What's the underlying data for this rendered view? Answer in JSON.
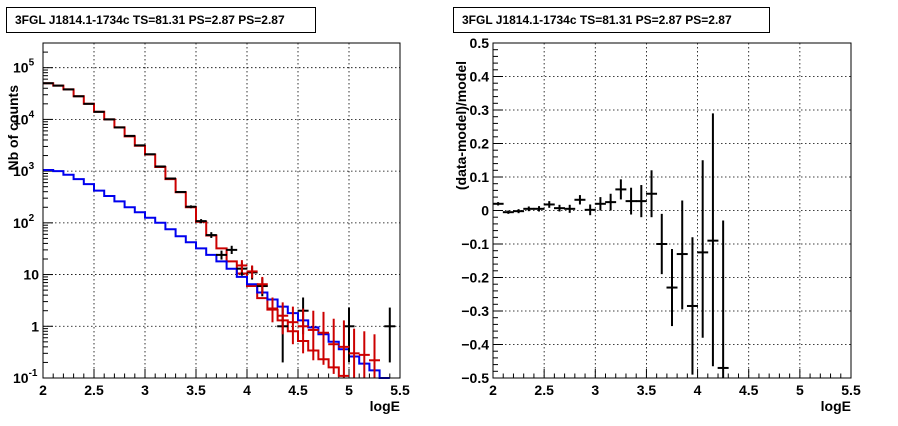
{
  "chart_data": [
    {
      "type": "histogram-log",
      "title": "3FGL J1814.1-1734c TS=81.31 PS=2.87 PS=2.87",
      "xlabel": "logE",
      "ylabel": "Nb of counts",
      "xlim": [
        2,
        5.5
      ],
      "ylim": [
        0.1,
        300000
      ],
      "log_y": true,
      "grid": true,
      "x_ticks": [
        "2",
        "2.5",
        "3",
        "3.5",
        "4",
        "4.5",
        "5",
        "5.5"
      ],
      "y_ticks": [
        {
          "value": 0.1,
          "label": "10",
          "exp": "-1"
        },
        {
          "value": 1,
          "label": "1",
          "exp": ""
        },
        {
          "value": 10,
          "label": "10",
          "exp": ""
        },
        {
          "value": 100,
          "label": "10",
          "exp": "2"
        },
        {
          "value": 1000,
          "label": "10",
          "exp": "3"
        },
        {
          "value": 10000,
          "label": "10",
          "exp": "4"
        },
        {
          "value": 100000,
          "label": "10",
          "exp": "5"
        }
      ],
      "bin_edges": [
        2.0,
        2.1,
        2.2,
        2.3,
        2.4,
        2.5,
        2.6,
        2.7,
        2.8,
        2.9,
        3.0,
        3.1,
        3.2,
        3.3,
        3.4,
        3.5,
        3.6,
        3.7,
        3.8,
        3.9,
        4.0,
        4.1,
        4.2,
        4.3,
        4.4,
        4.5,
        4.6,
        4.7,
        4.8,
        4.9,
        5.0,
        5.1,
        5.2,
        5.3,
        5.4
      ],
      "series": [
        {
          "kind": "step",
          "color": "#cc0000",
          "values": [
            50000,
            45000,
            38000,
            28000,
            20000,
            14000,
            10000,
            7000,
            4700,
            3100,
            2100,
            1200,
            700,
            390,
            200,
            105,
            57,
            32,
            18,
            10.5,
            6,
            3.5,
            2.1,
            1.3,
            0.8,
            0.52,
            0.34,
            0.23,
            0.16,
            0.11
          ]
        },
        {
          "kind": "step",
          "color": "#0000ee",
          "values": [
            1050,
            1000,
            850,
            700,
            560,
            420,
            330,
            260,
            200,
            160,
            125,
            100,
            75,
            55,
            42,
            32,
            24,
            18,
            13,
            9,
            6.5,
            4.5,
            3.3,
            2.4,
            1.8,
            1.3,
            0.95,
            0.7,
            0.5,
            0.36,
            0.26,
            0.19,
            0.14,
            0.1
          ]
        },
        {
          "kind": "errorbar",
          "color": "#000000",
          "points": [
            {
              "x": 2.05,
              "y": 50000,
              "lo": 49500,
              "hi": 50500
            },
            {
              "x": 2.15,
              "y": 45000,
              "lo": 44500,
              "hi": 45500
            },
            {
              "x": 2.25,
              "y": 38000,
              "lo": 37500,
              "hi": 38500
            },
            {
              "x": 2.35,
              "y": 28000,
              "lo": 27600,
              "hi": 28400
            },
            {
              "x": 2.45,
              "y": 20000,
              "lo": 19700,
              "hi": 20300
            },
            {
              "x": 2.55,
              "y": 14000,
              "lo": 13750,
              "hi": 14250
            },
            {
              "x": 2.65,
              "y": 10000,
              "lo": 9800,
              "hi": 10200
            },
            {
              "x": 2.75,
              "y": 7000,
              "lo": 6850,
              "hi": 7150
            },
            {
              "x": 2.85,
              "y": 4800,
              "lo": 4700,
              "hi": 4900
            },
            {
              "x": 2.95,
              "y": 3150,
              "lo": 3080,
              "hi": 3220
            },
            {
              "x": 3.05,
              "y": 2120,
              "lo": 2070,
              "hi": 2170
            },
            {
              "x": 3.15,
              "y": 1230,
              "lo": 1200,
              "hi": 1260
            },
            {
              "x": 3.25,
              "y": 720,
              "lo": 695,
              "hi": 745
            },
            {
              "x": 3.35,
              "y": 395,
              "lo": 378,
              "hi": 412
            },
            {
              "x": 3.45,
              "y": 205,
              "lo": 192,
              "hi": 218
            },
            {
              "x": 3.55,
              "y": 108,
              "lo": 98,
              "hi": 118
            },
            {
              "x": 3.65,
              "y": 58,
              "lo": 51,
              "hi": 66
            },
            {
              "x": 3.75,
              "y": 24,
              "lo": 19.5,
              "hi": 29
            },
            {
              "x": 3.85,
              "y": 30,
              "lo": 25,
              "hi": 36
            },
            {
              "x": 3.95,
              "y": 13,
              "lo": 9.5,
              "hi": 17
            },
            {
              "x": 4.05,
              "y": 11,
              "lo": 8,
              "hi": 14.5
            },
            {
              "x": 4.15,
              "y": 6,
              "lo": 3.8,
              "hi": 8.5
            },
            {
              "x": 4.25,
              "y": 2.2,
              "lo": 1.2,
              "hi": 3.5
            },
            {
              "x": 4.35,
              "y": 1.0,
              "lo": 0.2,
              "hi": 2.3
            },
            {
              "x": 4.55,
              "y": 2.0,
              "lo": 0.7,
              "hi": 3.6
            },
            {
              "x": 5.0,
              "y": 1.0,
              "lo": 0.2,
              "hi": 2.3
            },
            {
              "x": 5.4,
              "y": 1.0,
              "lo": 0.2,
              "hi": 2.3
            }
          ]
        },
        {
          "kind": "errorbar",
          "color": "#cc0000",
          "points": [
            {
              "x": 3.95,
              "y": 15,
              "lo": 11,
              "hi": 19
            },
            {
              "x": 4.05,
              "y": 11.5,
              "lo": 8.5,
              "hi": 15
            },
            {
              "x": 4.15,
              "y": 6.5,
              "lo": 4.2,
              "hi": 9
            },
            {
              "x": 4.25,
              "y": 2.2,
              "lo": 1.2,
              "hi": 3.6
            },
            {
              "x": 4.35,
              "y": 1.6,
              "lo": 0.7,
              "hi": 2.9
            },
            {
              "x": 4.45,
              "y": 1.2,
              "lo": 0.45,
              "hi": 2.4
            },
            {
              "x": 4.55,
              "y": 1.0,
              "lo": 0.3,
              "hi": 2.2
            },
            {
              "x": 4.65,
              "y": 0.85,
              "lo": 0.22,
              "hi": 2.0
            },
            {
              "x": 4.75,
              "y": 0.75,
              "lo": 0.18,
              "hi": 1.9
            },
            {
              "x": 4.85,
              "y": 0.45,
              "lo": 0.12,
              "hi": 1.4
            },
            {
              "x": 4.95,
              "y": 0.4,
              "lo": 0.1,
              "hi": 1.3
            },
            {
              "x": 5.05,
              "y": 0.3,
              "lo": 0.1,
              "hi": 0.9
            },
            {
              "x": 5.15,
              "y": 0.28,
              "lo": 0.1,
              "hi": 0.8
            },
            {
              "x": 5.25,
              "y": 0.22,
              "lo": 0.1,
              "hi": 0.7
            }
          ]
        }
      ]
    },
    {
      "type": "errorbar",
      "title": "3FGL J1814.1-1734c TS=81.31 PS=2.87 PS=2.87",
      "xlabel": "logE",
      "ylabel": "(data-model)/model",
      "xlim": [
        2,
        5.5
      ],
      "ylim": [
        -0.5,
        0.5
      ],
      "grid": true,
      "x_ticks": [
        "2",
        "2.5",
        "3",
        "3.5",
        "4",
        "4.5",
        "5",
        "5.5"
      ],
      "y_ticks": [
        "−0.5",
        "−0.4",
        "−0.3",
        "−0.2",
        "−0.1",
        "0",
        "0.1",
        "0.2",
        "0.3",
        "0.4",
        "0.5"
      ],
      "series": [
        {
          "kind": "errorbar",
          "color": "#000000",
          "points": [
            {
              "x": 2.05,
              "y": 0.02,
              "lo": 0.015,
              "hi": 0.025
            },
            {
              "x": 2.15,
              "y": -0.005,
              "lo": -0.01,
              "hi": 0.0
            },
            {
              "x": 2.25,
              "y": -0.002,
              "lo": -0.008,
              "hi": 0.004
            },
            {
              "x": 2.35,
              "y": 0.005,
              "lo": -0.002,
              "hi": 0.012
            },
            {
              "x": 2.45,
              "y": 0.005,
              "lo": -0.003,
              "hi": 0.013
            },
            {
              "x": 2.55,
              "y": 0.018,
              "lo": 0.008,
              "hi": 0.028
            },
            {
              "x": 2.65,
              "y": 0.007,
              "lo": -0.003,
              "hi": 0.017
            },
            {
              "x": 2.75,
              "y": 0.005,
              "lo": -0.007,
              "hi": 0.017
            },
            {
              "x": 2.85,
              "y": 0.032,
              "lo": 0.018,
              "hi": 0.046
            },
            {
              "x": 2.95,
              "y": 0.002,
              "lo": -0.014,
              "hi": 0.018
            },
            {
              "x": 3.05,
              "y": 0.02,
              "lo": 0.0,
              "hi": 0.04
            },
            {
              "x": 3.15,
              "y": 0.025,
              "lo": 0.0,
              "hi": 0.05
            },
            {
              "x": 3.25,
              "y": 0.063,
              "lo": 0.033,
              "hi": 0.093
            },
            {
              "x": 3.35,
              "y": 0.028,
              "lo": -0.012,
              "hi": 0.068
            },
            {
              "x": 3.45,
              "y": 0.028,
              "lo": -0.02,
              "hi": 0.076
            },
            {
              "x": 3.55,
              "y": 0.05,
              "lo": -0.02,
              "hi": 0.12
            },
            {
              "x": 3.65,
              "y": -0.1,
              "lo": -0.19,
              "hi": -0.01
            },
            {
              "x": 3.75,
              "y": -0.23,
              "lo": -0.345,
              "hi": -0.115
            },
            {
              "x": 3.85,
              "y": -0.13,
              "lo": -0.295,
              "hi": 0.03
            },
            {
              "x": 3.95,
              "y": -0.285,
              "lo": -0.49,
              "hi": -0.08
            },
            {
              "x": 4.05,
              "y": -0.125,
              "lo": -0.38,
              "hi": 0.15
            },
            {
              "x": 4.15,
              "y": -0.09,
              "lo": -0.465,
              "hi": 0.29
            },
            {
              "x": 4.25,
              "y": -0.47,
              "lo": -0.5,
              "hi": -0.03
            }
          ]
        }
      ]
    }
  ]
}
